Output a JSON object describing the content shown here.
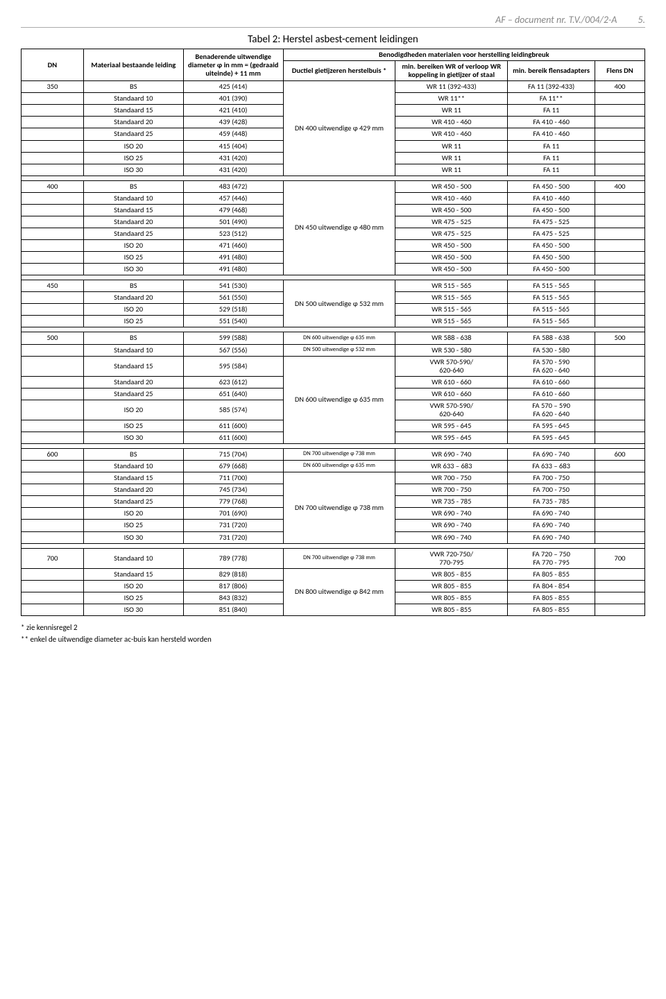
{
  "header": {
    "title": "AF – document nr. T.V./004/2-A",
    "page": "5."
  },
  "table_title": "Tabel 2: Herstel asbest-cement leidingen",
  "colhead": {
    "dn": "DN",
    "material": "Materiaal bestaande leiding",
    "diameter": "Benaderende uitwendige diameter φ in mm = (gedraaid uiteinde) + 11 mm",
    "benod": "Benodigdheden materialen voor herstelling leidingbreuk",
    "ductiel": "Ductiel gietijzeren herstelbuis *",
    "minbereik": "min. bereiken WR of verloop WR koppeling in gietijzer of staal",
    "flensad": "min. bereik flensadapters",
    "flensdn": "Flens DN"
  },
  "groups": [
    {
      "dn": "350",
      "flens": "400",
      "herstel_label": "DN 400 uitwendige φ 429 mm",
      "herstel_span_start": 3,
      "herstel_span_len": 3,
      "rows": [
        {
          "mat": "BS",
          "dia": "425 (414)",
          "wr": "WR 11 (392-433)",
          "fa": "FA 11 (392-433)",
          "first": true
        },
        {
          "mat": "Standaard 10",
          "dia": "401 (390)",
          "wr": "WR 11**",
          "fa": "FA 11**"
        },
        {
          "mat": "Standaard 15",
          "dia": "421 (410)",
          "wr": "WR 11",
          "fa": "FA 11"
        },
        {
          "mat": "Standaard 20",
          "dia": "439 (428)",
          "wr": "WR 410 - 460",
          "fa": "FA 410 - 460"
        },
        {
          "mat": "Standaard 25",
          "dia": "459 (448)",
          "wr": "WR 410 - 460",
          "fa": "FA 410 - 460"
        },
        {
          "mat": "ISO 20",
          "dia": "415 (404)",
          "wr": "WR 11",
          "fa": "FA 11"
        },
        {
          "mat": "ISO 25",
          "dia": "431 (420)",
          "wr": "WR 11",
          "fa": "FA 11"
        },
        {
          "mat": "ISO 30",
          "dia": "431 (420)",
          "wr": "WR 11",
          "fa": "FA 11"
        }
      ]
    },
    {
      "dn": "400",
      "flens": "400",
      "herstel_label": "DN 450 uitwendige φ 480 mm",
      "herstel_span_start": 3,
      "herstel_span_len": 3,
      "rows": [
        {
          "mat": "BS",
          "dia": "483 (472)",
          "wr": "WR 450 - 500",
          "fa": "FA 450 - 500",
          "first": true
        },
        {
          "mat": "Standaard 10",
          "dia": "457 (446)",
          "wr": "WR 410 - 460",
          "fa": "FA 410 - 460"
        },
        {
          "mat": "Standaard 15",
          "dia": "479 (468)",
          "wr": "WR 450 - 500",
          "fa": "FA 450 - 500"
        },
        {
          "mat": "Standaard 20",
          "dia": "501 (490)",
          "wr": "WR 475 - 525",
          "fa": "FA 475 - 525"
        },
        {
          "mat": "Standaard 25",
          "dia": "523 (512)",
          "wr": "WR 475 - 525",
          "fa": "FA 475 - 525"
        },
        {
          "mat": "ISO 20",
          "dia": "471 (460)",
          "wr": "WR 450 - 500",
          "fa": "FA 450 - 500"
        },
        {
          "mat": "ISO 25",
          "dia": "491 (480)",
          "wr": "WR 450 - 500",
          "fa": "FA 450 - 500"
        },
        {
          "mat": "ISO 30",
          "dia": "491 (480)",
          "wr": "WR 450 - 500",
          "fa": "FA 450 - 500"
        }
      ]
    },
    {
      "dn": "450",
      "flens": "",
      "herstel_label": "DN 500 uitwendige φ 532 mm",
      "herstel_span_start": 1,
      "herstel_span_len": 3,
      "rows": [
        {
          "mat": "BS",
          "dia": "541 (530)",
          "wr": "WR 515 - 565",
          "fa": "FA 515 - 565",
          "first": true
        },
        {
          "mat": "Standaard 20",
          "dia": "561 (550)",
          "wr": "WR 515 - 565",
          "fa": "FA 515 - 565"
        },
        {
          "mat": "ISO 20",
          "dia": "529 (518)",
          "wr": "WR 515 - 565",
          "fa": "FA 515 - 565"
        },
        {
          "mat": "ISO 25",
          "dia": "551 (540)",
          "wr": "WR 515 - 565",
          "fa": "FA 515 - 565"
        }
      ]
    },
    {
      "dn": "500",
      "flens": "500",
      "special_first_two": true,
      "special0": "DN 600 uitwendige φ 635 mm",
      "special1": "DN 500 uitwendige φ 532 mm",
      "herstel_label": "DN 600 uitwendige φ 635 mm",
      "herstel_span_start": 3,
      "herstel_span_len": 4,
      "rows": [
        {
          "mat": "BS",
          "dia": "599 (588)",
          "wr": "WR 588 - 638",
          "fa": "FA 588 - 638",
          "first": true
        },
        {
          "mat": "Standaard 10",
          "dia": "567 (556)",
          "wr": "WR 530 - 580",
          "fa": "FA 530 - 580"
        },
        {
          "mat": "Standaard 15",
          "dia": "595 (584)",
          "wr": "VWR 570-590/ 620-640",
          "fa": "FA 570 - 590 FA 620 - 640",
          "multi": true
        },
        {
          "mat": "Standaard 20",
          "dia": "623 (612)",
          "wr": "WR 610 - 660",
          "fa": "FA 610 - 660"
        },
        {
          "mat": "Standaard 25",
          "dia": "651 (640)",
          "wr": "WR 610 - 660",
          "fa": "FA 610 - 660"
        },
        {
          "mat": "ISO 20",
          "dia": "585 (574)",
          "wr": "VWR 570-590/ 620-640",
          "fa": "FA 570 – 590 FA 620 - 640",
          "multi": true
        },
        {
          "mat": "ISO 25",
          "dia": "611 (600)",
          "wr": "WR 595 - 645",
          "fa": "FA 595 - 645"
        },
        {
          "mat": "ISO 30",
          "dia": "611 (600)",
          "wr": "WR 595 - 645",
          "fa": "FA 595 - 645"
        }
      ]
    },
    {
      "dn": "600",
      "flens": "600",
      "special_first_two": true,
      "special0": "DN 700 uitwendige φ 738 mm",
      "special1": "DN 600 uitwendige φ 635 mm",
      "herstel_label": "DN 700 uitwendige φ 738 mm",
      "herstel_span_start": 4,
      "herstel_span_len": 3,
      "rows": [
        {
          "mat": "BS",
          "dia": "715 (704)",
          "wr": "WR 690 - 740",
          "fa": "FA 690 - 740",
          "first": true
        },
        {
          "mat": "Standaard 10",
          "dia": "679 (668)",
          "wr": "WR 633 – 683",
          "fa": "FA 633 – 683"
        },
        {
          "mat": "Standaard 15",
          "dia": "711 (700)",
          "wr": "WR 700 - 750",
          "fa": "FA 700 - 750"
        },
        {
          "mat": "Standaard 20",
          "dia": "745 (734)",
          "wr": "WR 700 - 750",
          "fa": "FA 700 - 750"
        },
        {
          "mat": "Standaard 25",
          "dia": "779 (768)",
          "wr": "WR 735 - 785",
          "fa": "FA 735 - 785"
        },
        {
          "mat": "ISO 20",
          "dia": "701 (690)",
          "wr": "WR 690 - 740",
          "fa": "FA 690 - 740"
        },
        {
          "mat": "ISO 25",
          "dia": "731 (720)",
          "wr": "WR 690 - 740",
          "fa": "FA 690 - 740"
        },
        {
          "mat": "ISO 30",
          "dia": "731 (720)",
          "wr": "WR 690 - 740",
          "fa": "FA 690 - 740"
        }
      ]
    },
    {
      "dn": "700",
      "flens": "700",
      "special_first_one": true,
      "special0": "DN 700 uitwendige φ 738 mm",
      "herstel_label": "DN 800 uitwendige φ 842 mm",
      "herstel_span_start": 2,
      "herstel_span_len": 3,
      "rows": [
        {
          "mat": "Standaard 10",
          "dia": "789 (778)",
          "wr": "VWR 720-750/ 770-795",
          "fa": "FA 720 – 750 FA 770 - 795",
          "first": true,
          "multi": true
        },
        {
          "mat": "Standaard 15",
          "dia": "829 (818)",
          "wr": "WR 805 - 855",
          "fa": "FA 805 - 855"
        },
        {
          "mat": "ISO 20",
          "dia": "817 (806)",
          "wr": "WR 805 - 855",
          "fa": "FA 804 - 854"
        },
        {
          "mat": "ISO 25",
          "dia": "843 (832)",
          "wr": "WR 805 - 855",
          "fa": "FA 805 - 855"
        },
        {
          "mat": "ISO 30",
          "dia": "851 (840)",
          "wr": "WR 805 - 855",
          "fa": "FA 805 - 855"
        }
      ]
    }
  ],
  "footnotes": {
    "f1": "* zie kennisregel 2",
    "f2": "** enkel de uitwendige diameter ac-buis kan hersteld worden"
  }
}
